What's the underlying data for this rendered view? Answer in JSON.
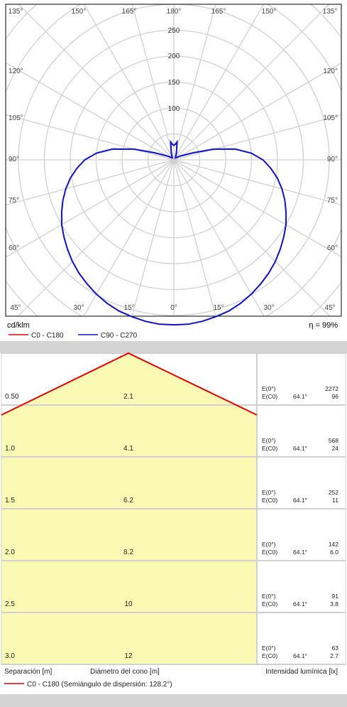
{
  "polar": {
    "unit_label": "cd/klm",
    "efficiency_label": "η = 99%",
    "angle_labels_top": [
      "135°",
      "150°",
      "165°",
      "180°",
      "165°",
      "150°",
      "135°"
    ],
    "angle_labels_bottom": [
      "45°",
      "30°",
      "15°",
      "0°",
      "15°",
      "30°",
      "45°"
    ],
    "angle_labels_left": [
      "120°",
      "105°",
      "90°",
      "75°",
      "60°"
    ],
    "angle_labels_right": [
      "120°",
      "105°",
      "90°",
      "75°",
      "60°"
    ],
    "radial_labels": [
      "100",
      "150",
      "200",
      "250"
    ],
    "legend": [
      {
        "name": "C0 - C180",
        "color": "#e00000"
      },
      {
        "name": "C90 - C270",
        "color": "#1010c8"
      }
    ]
  },
  "cone": {
    "rows": [
      {
        "separation": "0.50",
        "diameter": "2.1",
        "e0": "2272",
        "ec0_angle": "64.1°",
        "ec0": "96"
      },
      {
        "separation": "1.0",
        "diameter": "4.1",
        "e0": "568",
        "ec0_angle": "64.1°",
        "ec0": "24"
      },
      {
        "separation": "1.5",
        "diameter": "6.2",
        "e0": "252",
        "ec0_angle": "64.1°",
        "ec0": "11"
      },
      {
        "separation": "2.0",
        "diameter": "8.2",
        "e0": "142",
        "ec0_angle": "64.1°",
        "ec0": "6.0"
      },
      {
        "separation": "2.5",
        "diameter": "10",
        "e0": "91",
        "ec0_angle": "64.1°",
        "ec0": "3.8"
      },
      {
        "separation": "3.0",
        "diameter": "12",
        "e0": "63",
        "ec0_angle": "64.1°",
        "ec0": "2.7"
      }
    ],
    "e0_label": "E(0°)",
    "ec0_label": "E(C0)",
    "footer": {
      "separation_label": "Separación [m]",
      "diameter_label": "Diámetro del cono [m]",
      "intensity_label": "Intensidad lumínica [lx]",
      "legend_label": "C0 - C180 (Semiángulo de dispersión: 128.2°)"
    },
    "colors": {
      "fill": "#fafab4",
      "line": "#e00000"
    }
  },
  "chart_data": [
    {
      "type": "polar",
      "unit": "cd/klm",
      "efficiency": "99%",
      "radial_ticks": [
        100,
        150,
        200,
        250
      ],
      "angle_ticks": [
        0,
        15,
        30,
        45,
        60,
        75,
        90,
        105,
        120,
        135,
        150,
        165,
        180
      ],
      "series": [
        {
          "name": "C90 - C270",
          "color": "#1010c8",
          "angles": [
            0,
            5,
            10,
            15,
            20,
            25,
            30,
            35,
            40,
            45,
            50,
            55,
            60,
            65,
            70,
            75,
            80,
            85,
            90,
            95,
            100,
            105,
            110,
            120,
            140,
            160,
            170,
            175,
            180
          ],
          "values": [
            318,
            318,
            316,
            313,
            310,
            305,
            299,
            292,
            285,
            277,
            268,
            259,
            250,
            239,
            228,
            216,
            203,
            188,
            172,
            150,
            120,
            80,
            40,
            15,
            5,
            15,
            35,
            30,
            28
          ]
        },
        {
          "name": "C0 - C180",
          "color": "#e00000",
          "angles": [],
          "values": []
        }
      ]
    },
    {
      "type": "table",
      "half_angle": "128.2°",
      "columns": [
        "Separación [m]",
        "Diámetro del cono [m]",
        "E(0°)",
        "E(C0)"
      ],
      "rows": [
        [
          0.5,
          2.1,
          2272,
          96
        ],
        [
          1.0,
          4.1,
          568,
          24
        ],
        [
          1.5,
          6.2,
          252,
          11
        ],
        [
          2.0,
          8.2,
          142,
          6.0
        ],
        [
          2.5,
          10,
          91,
          3.8
        ],
        [
          3.0,
          12,
          63,
          2.7
        ]
      ]
    }
  ]
}
